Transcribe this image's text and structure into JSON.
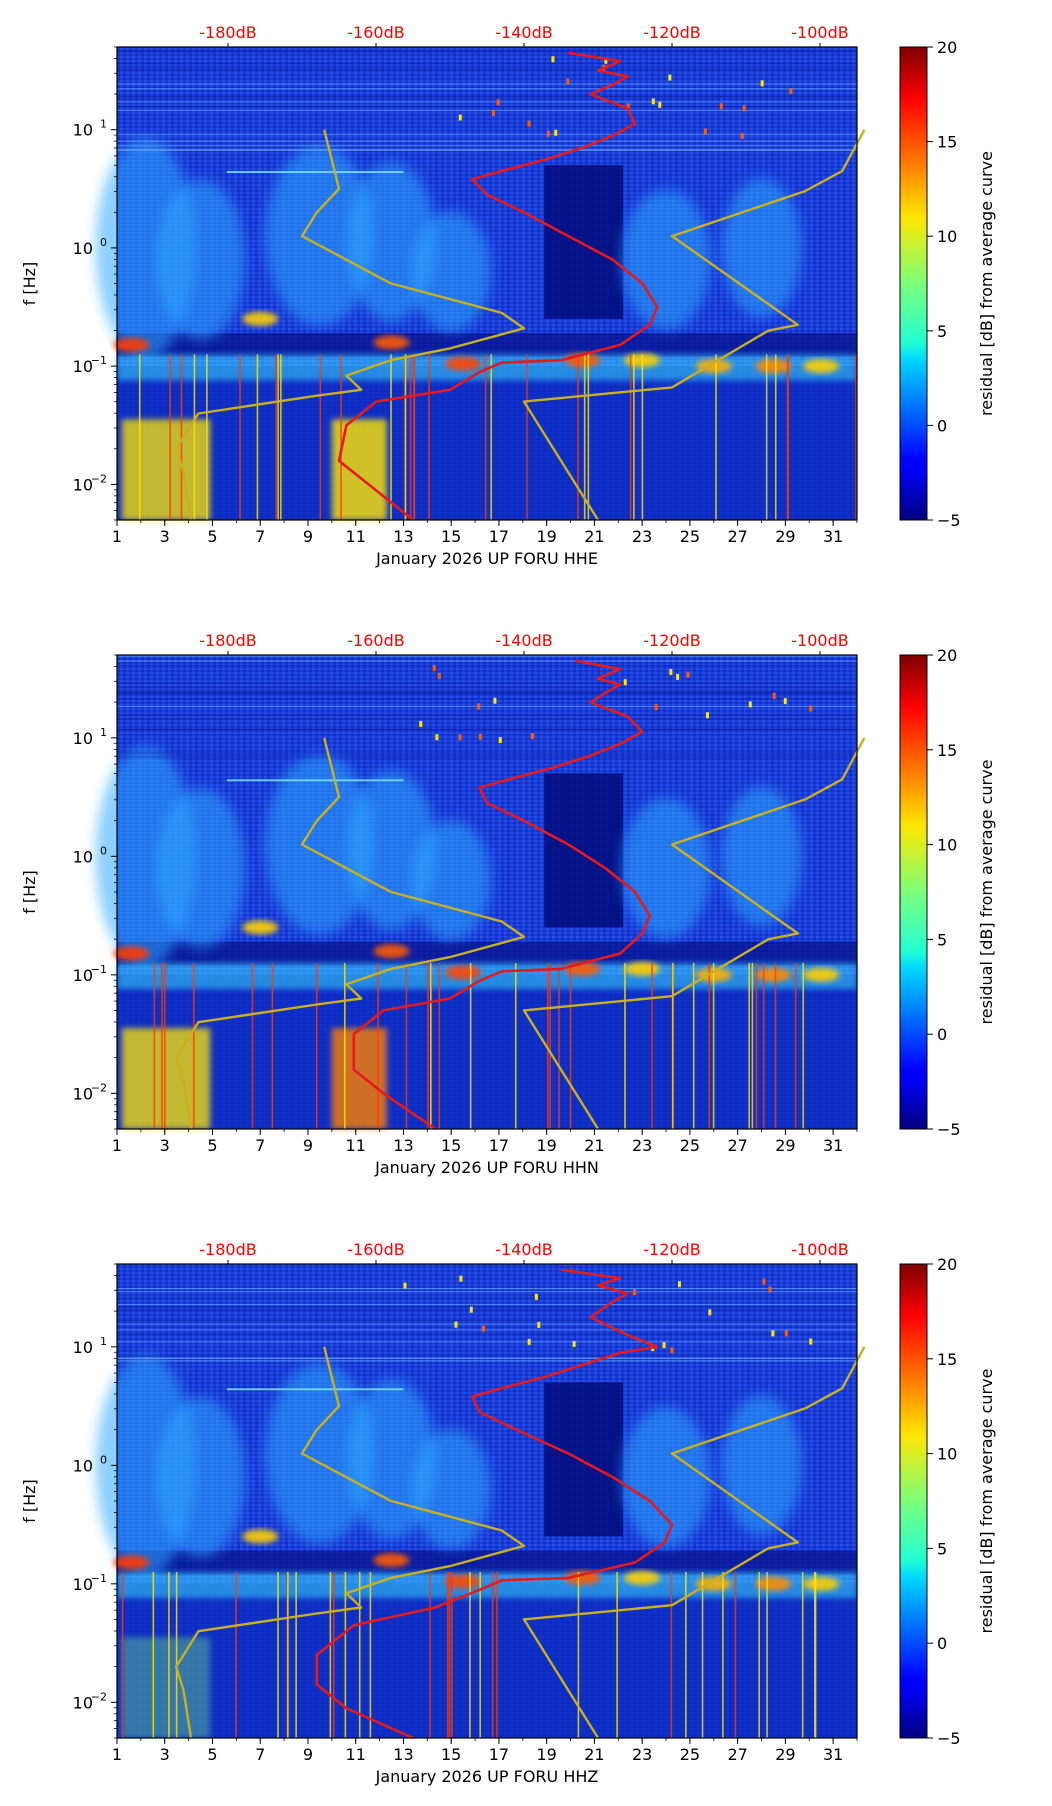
{
  "chart_data": [
    {
      "type": "heatmap",
      "channel": "HHE",
      "xlabel": "January 2026 UP FORU  HHE",
      "ylabel": "f [Hz]",
      "x_ticks": [
        "1",
        "3",
        "5",
        "7",
        "9",
        "11",
        "13",
        "15",
        "17",
        "19",
        "21",
        "23",
        "25",
        "27",
        "29",
        "31"
      ],
      "x_range_days": [
        1,
        32
      ],
      "y_ticks": [
        "10^-2",
        "10^-1",
        "10^0",
        "10^1"
      ],
      "y_range_hz": [
        0.005,
        50
      ],
      "top_axis_ticks": [
        "-180dB",
        "-160dB",
        "-140dB",
        "-120dB",
        "-100dB"
      ],
      "colorbar": {
        "label": "residual [dB] from average curve",
        "ticks": [
          "20",
          "15",
          "10",
          "5",
          "0",
          "−5"
        ],
        "range": [
          -5,
          20
        ]
      },
      "series": [
        {
          "name": "average PSD curve",
          "color": "#e41a1c",
          "points_db_logf": [
            [
              -155,
              -2.3
            ],
            [
              -161,
              -2
            ],
            [
              -165,
              -1.8
            ],
            [
              -164,
              -1.5
            ],
            [
              -160,
              -1.3
            ],
            [
              -150,
              -1.2
            ],
            [
              -146,
              -1.05
            ],
            [
              -143,
              -0.97
            ],
            [
              -135,
              -0.95
            ],
            [
              -127,
              -0.82
            ],
            [
              -123,
              -0.65
            ],
            [
              -122,
              -0.5
            ],
            [
              -124,
              -0.3
            ],
            [
              -128,
              -0.1
            ],
            [
              -134,
              0.1
            ],
            [
              -140,
              0.3
            ],
            [
              -145,
              0.45
            ],
            [
              -147,
              0.58
            ],
            [
              -143,
              0.65
            ],
            [
              -137,
              0.75
            ],
            [
              -132,
              0.85
            ],
            [
              -128,
              0.95
            ],
            [
              -125,
              1.05
            ],
            [
              -126,
              1.18
            ],
            [
              -131,
              1.3
            ],
            [
              -128,
              1.38
            ],
            [
              -126,
              1.45
            ],
            [
              -130,
              1.5
            ],
            [
              -127,
              1.58
            ],
            [
              -134,
              1.65
            ]
          ]
        },
        {
          "name": "NLNM",
          "color": "#c8b020",
          "points_db_logf": [
            [
              -185,
              -2.3
            ],
            [
              -186,
              -1.9
            ],
            [
              -187,
              -1.7
            ],
            [
              -184,
              -1.4
            ],
            [
              -168,
              -1.25
            ],
            [
              -162,
              -1.2
            ],
            [
              -164,
              -1.08
            ],
            [
              -158,
              -0.95
            ],
            [
              -150,
              -0.85
            ],
            [
              -140,
              -0.68
            ],
            [
              -143,
              -0.55
            ],
            [
              -158,
              -0.3
            ],
            [
              -170,
              0.1
            ],
            [
              -168,
              0.3
            ],
            [
              -165,
              0.5
            ],
            [
              -167,
              1.0
            ]
          ]
        },
        {
          "name": "NHNM",
          "color": "#c8b020",
          "points_db_logf": [
            [
              -130,
              -2.3
            ],
            [
              -140,
              -1.3
            ],
            [
              -120,
              -1.18
            ],
            [
              -107,
              -0.7
            ],
            [
              -103,
              -0.65
            ],
            [
              -120,
              0.1
            ],
            [
              -102,
              0.48
            ],
            [
              -97,
              0.65
            ],
            [
              -94,
              1.0
            ]
          ]
        }
      ]
    },
    {
      "type": "heatmap",
      "channel": "HHN",
      "xlabel": "January 2026 UP FORU  HHN",
      "ylabel": "f [Hz]",
      "x_ticks": [
        "1",
        "3",
        "5",
        "7",
        "9",
        "11",
        "13",
        "15",
        "17",
        "19",
        "21",
        "23",
        "25",
        "27",
        "29",
        "31"
      ],
      "x_range_days": [
        1,
        32
      ],
      "y_ticks": [
        "10^-2",
        "10^-1",
        "10^0",
        "10^1"
      ],
      "y_range_hz": [
        0.005,
        50
      ],
      "top_axis_ticks": [
        "-180dB",
        "-160dB",
        "-140dB",
        "-120dB",
        "-100dB"
      ],
      "colorbar": {
        "label": "residual [dB] from average curve",
        "ticks": [
          "20",
          "15",
          "10",
          "5",
          "0",
          "−5"
        ],
        "range": [
          -5,
          20
        ]
      },
      "series": [
        {
          "name": "average PSD curve",
          "color": "#e41a1c",
          "points_db_logf": [
            [
              -152,
              -2.3
            ],
            [
              -159,
              -2
            ],
            [
              -163,
              -1.8
            ],
            [
              -163,
              -1.5
            ],
            [
              -159,
              -1.3
            ],
            [
              -150,
              -1.2
            ],
            [
              -146,
              -1.05
            ],
            [
              -143,
              -0.97
            ],
            [
              -135,
              -0.95
            ],
            [
              -127,
              -0.82
            ],
            [
              -124,
              -0.65
            ],
            [
              -123,
              -0.5
            ],
            [
              -125,
              -0.3
            ],
            [
              -129,
              -0.1
            ],
            [
              -134,
              0.1
            ],
            [
              -140,
              0.3
            ],
            [
              -145,
              0.45
            ],
            [
              -146,
              0.58
            ],
            [
              -142,
              0.65
            ],
            [
              -136,
              0.75
            ],
            [
              -131,
              0.85
            ],
            [
              -127,
              0.95
            ],
            [
              -124,
              1.05
            ],
            [
              -126,
              1.18
            ],
            [
              -131,
              1.3
            ],
            [
              -129,
              1.38
            ],
            [
              -127,
              1.45
            ],
            [
              -130,
              1.5
            ],
            [
              -127,
              1.58
            ],
            [
              -133,
              1.65
            ]
          ]
        },
        {
          "name": "NLNM",
          "color": "#c8b020",
          "points_db_logf": [
            [
              -185,
              -2.3
            ],
            [
              -186,
              -1.9
            ],
            [
              -187,
              -1.7
            ],
            [
              -184,
              -1.4
            ],
            [
              -168,
              -1.25
            ],
            [
              -162,
              -1.2
            ],
            [
              -164,
              -1.08
            ],
            [
              -158,
              -0.95
            ],
            [
              -150,
              -0.85
            ],
            [
              -140,
              -0.68
            ],
            [
              -143,
              -0.55
            ],
            [
              -158,
              -0.3
            ],
            [
              -170,
              0.1
            ],
            [
              -168,
              0.3
            ],
            [
              -165,
              0.5
            ],
            [
              -167,
              1.0
            ]
          ]
        },
        {
          "name": "NHNM",
          "color": "#c8b020",
          "points_db_logf": [
            [
              -130,
              -2.3
            ],
            [
              -140,
              -1.3
            ],
            [
              -120,
              -1.18
            ],
            [
              -107,
              -0.7
            ],
            [
              -103,
              -0.65
            ],
            [
              -120,
              0.1
            ],
            [
              -102,
              0.48
            ],
            [
              -97,
              0.65
            ],
            [
              -94,
              1.0
            ]
          ]
        }
      ]
    },
    {
      "type": "heatmap",
      "channel": "HHZ",
      "xlabel": "January 2026 UP FORU  HHZ",
      "ylabel": "f [Hz]",
      "x_ticks": [
        "1",
        "3",
        "5",
        "7",
        "9",
        "11",
        "13",
        "15",
        "17",
        "19",
        "21",
        "23",
        "25",
        "27",
        "29",
        "31"
      ],
      "x_range_days": [
        1,
        32
      ],
      "y_ticks": [
        "10^-2",
        "10^-1",
        "10^0",
        "10^1"
      ],
      "y_range_hz": [
        0.005,
        50
      ],
      "top_axis_ticks": [
        "-180dB",
        "-160dB",
        "-140dB",
        "-120dB",
        "-100dB"
      ],
      "colorbar": {
        "label": "residual [dB] from average curve",
        "ticks": [
          "20",
          "15",
          "10",
          "5",
          "0",
          "−5"
        ],
        "range": [
          -5,
          20
        ]
      },
      "series": [
        {
          "name": "average PSD curve",
          "color": "#e41a1c",
          "points_db_logf": [
            [
              -155,
              -2.3
            ],
            [
              -164,
              -2.05
            ],
            [
              -168,
              -1.85
            ],
            [
              -168,
              -1.6
            ],
            [
              -163,
              -1.35
            ],
            [
              -152,
              -1.2
            ],
            [
              -146,
              -1.05
            ],
            [
              -143,
              -0.97
            ],
            [
              -134,
              -0.95
            ],
            [
              -125,
              -0.82
            ],
            [
              -121,
              -0.65
            ],
            [
              -120,
              -0.5
            ],
            [
              -123,
              -0.3
            ],
            [
              -128,
              -0.1
            ],
            [
              -134,
              0.1
            ],
            [
              -141,
              0.3
            ],
            [
              -146,
              0.45
            ],
            [
              -147,
              0.58
            ],
            [
              -143,
              0.65
            ],
            [
              -137,
              0.75
            ],
            [
              -132,
              0.85
            ],
            [
              -127,
              0.95
            ],
            [
              -122,
              1.0
            ],
            [
              -126,
              1.1
            ],
            [
              -131,
              1.25
            ],
            [
              -128,
              1.38
            ],
            [
              -126,
              1.45
            ],
            [
              -130,
              1.52
            ],
            [
              -127,
              1.58
            ],
            [
              -135,
              1.65
            ]
          ]
        },
        {
          "name": "NLNM",
          "color": "#c8b020",
          "points_db_logf": [
            [
              -185,
              -2.3
            ],
            [
              -186,
              -1.9
            ],
            [
              -187,
              -1.7
            ],
            [
              -184,
              -1.4
            ],
            [
              -168,
              -1.25
            ],
            [
              -162,
              -1.2
            ],
            [
              -164,
              -1.08
            ],
            [
              -158,
              -0.95
            ],
            [
              -150,
              -0.85
            ],
            [
              -140,
              -0.68
            ],
            [
              -143,
              -0.55
            ],
            [
              -158,
              -0.3
            ],
            [
              -170,
              0.1
            ],
            [
              -168,
              0.3
            ],
            [
              -165,
              0.5
            ],
            [
              -167,
              1.0
            ]
          ]
        },
        {
          "name": "NHNM",
          "color": "#c8b020",
          "points_db_logf": [
            [
              -130,
              -2.3
            ],
            [
              -140,
              -1.3
            ],
            [
              -120,
              -1.18
            ],
            [
              -107,
              -0.7
            ],
            [
              -103,
              -0.65
            ],
            [
              -120,
              0.1
            ],
            [
              -102,
              0.48
            ],
            [
              -97,
              0.65
            ],
            [
              -94,
              1.0
            ]
          ]
        }
      ]
    }
  ]
}
